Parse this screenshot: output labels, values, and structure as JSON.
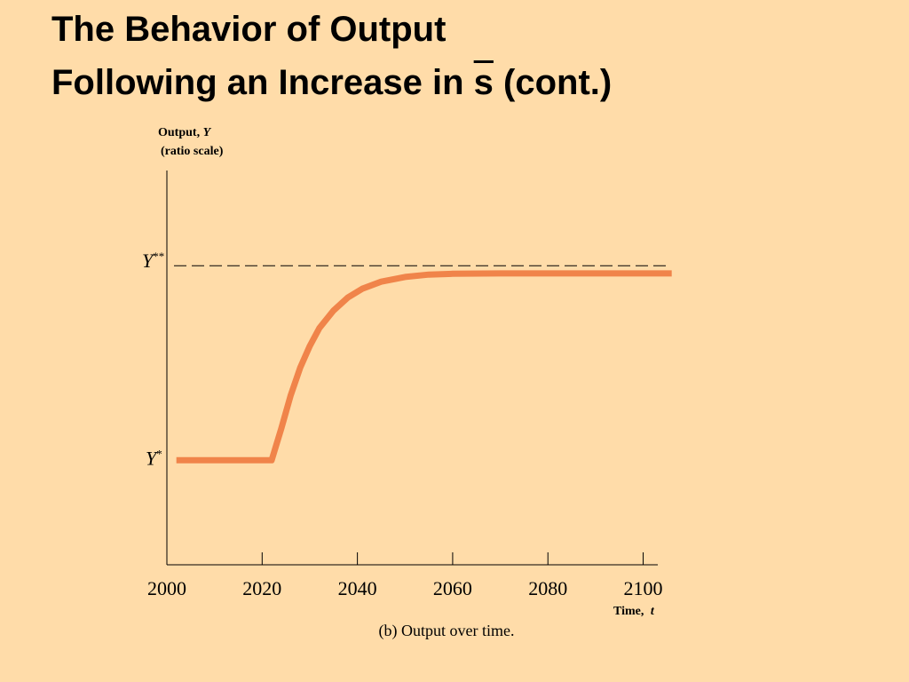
{
  "slide": {
    "background": "#FFDCA9",
    "title_line1": "The Behavior of Output",
    "title_line2_prefix": "Following an Increase in",
    "title_symbol": "s",
    "title_line2_suffix": "(cont.)"
  },
  "chart_data": {
    "type": "line",
    "caption": "(b) Output over time.",
    "ylabel_line1": "Output, ",
    "ylabel_var": "Y",
    "ylabel_line2": "(ratio scale)",
    "xlabel": "Time, ",
    "xlabel_var": "t",
    "xticks": [
      2000,
      2020,
      2040,
      2060,
      2080,
      2100
    ],
    "xlim": [
      2000,
      2104
    ],
    "ylim": [
      0,
      1
    ],
    "y_levels": {
      "y_star": {
        "label": "Y",
        "sup": "*",
        "value": 0.265
      },
      "y_star_star": {
        "label": "Y",
        "sup": "**",
        "value": 0.745
      }
    },
    "series": [
      {
        "name": "Output",
        "color": "#F0844A",
        "x": [
          2002,
          2022,
          2024,
          2026,
          2028,
          2030,
          2032,
          2035,
          2038,
          2041,
          2045,
          2050,
          2055,
          2060,
          2070,
          2080,
          2090,
          2100,
          2106
        ],
        "y": [
          0.265,
          0.265,
          0.345,
          0.43,
          0.5,
          0.555,
          0.6,
          0.645,
          0.678,
          0.7,
          0.718,
          0.73,
          0.736,
          0.738,
          0.739,
          0.739,
          0.739,
          0.739,
          0.739
        ]
      }
    ],
    "reference_line": {
      "style": "dashed",
      "color": "#000000",
      "level": "y_star_star"
    }
  }
}
